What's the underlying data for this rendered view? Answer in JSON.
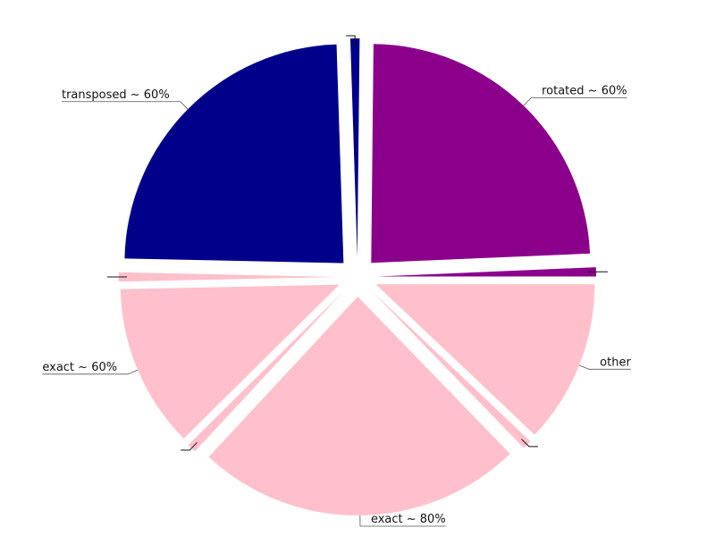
{
  "chart_data": {
    "type": "pie",
    "title": "",
    "slices": [
      {
        "label": "other",
        "value": 12.5,
        "color": "#ffc0cb"
      },
      {
        "label": "",
        "value": 0.7,
        "color": "#ffc0cb"
      },
      {
        "label": "exact ~ 80%",
        "value": 25,
        "color": "#ffc0cb"
      },
      {
        "label": "",
        "value": 0.7,
        "color": "#ffc0cb"
      },
      {
        "label": "exact ~ 60%",
        "value": 12.5,
        "color": "#ffc0cb"
      },
      {
        "label": "",
        "value": 0.7,
        "color": "#ffc0cb"
      },
      {
        "label": "transposed ~ 60%",
        "value": 25,
        "color": "#00008b"
      },
      {
        "label": "",
        "value": 0.7,
        "color": "#00008b"
      },
      {
        "label": "rotated ~ 60%",
        "value": 25,
        "color": "#8b008b"
      },
      {
        "label": "",
        "value": 0.7,
        "color": "#8b008b"
      }
    ],
    "start_angle_deg": 0,
    "direction": "clockwise",
    "exploded": true,
    "legend": "none"
  }
}
